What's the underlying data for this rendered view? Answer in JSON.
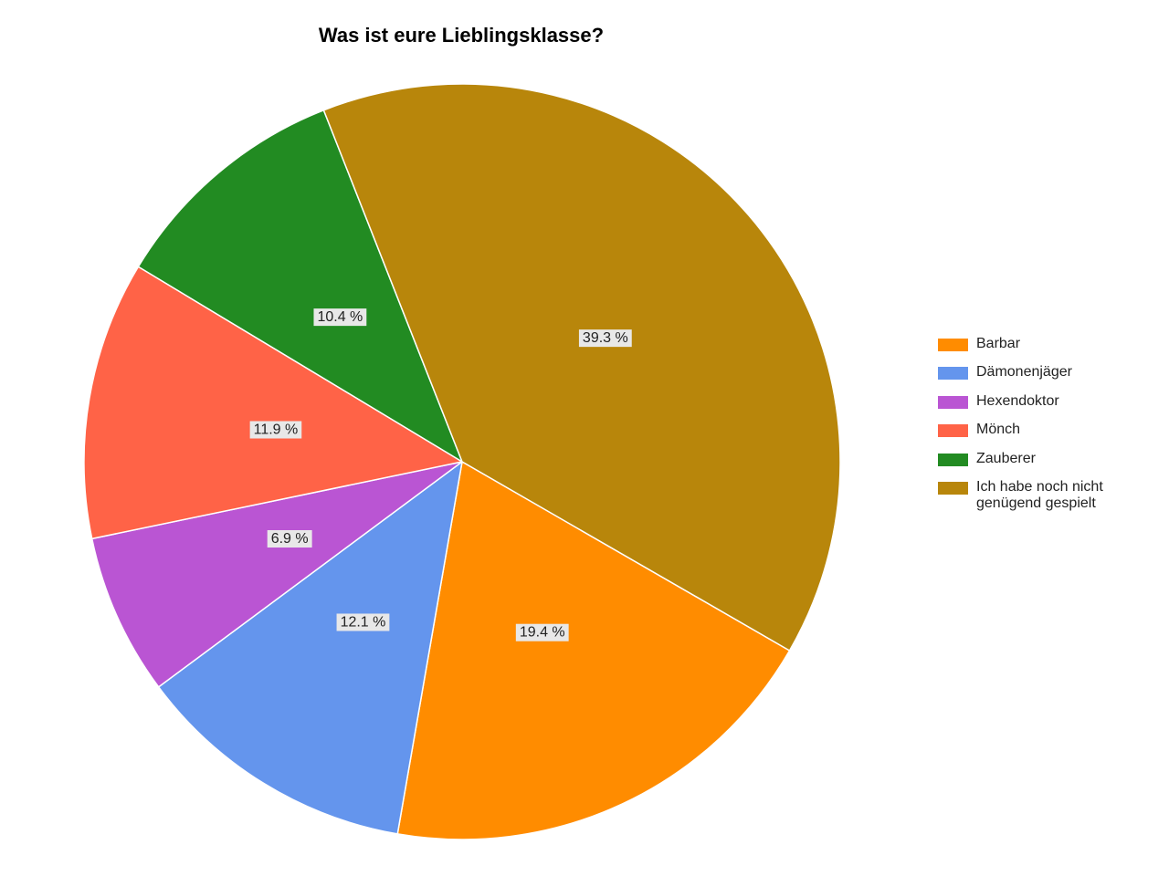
{
  "chart_data": {
    "type": "pie",
    "title": "Was ist eure Lieblingsklasse?",
    "categories": [
      "Barbar",
      "Dämonenjäger",
      "Hexendoktor",
      "Mönch",
      "Zauberer",
      "Ich habe noch nicht genügend gespielt"
    ],
    "values": [
      19.4,
      12.1,
      6.9,
      11.9,
      10.4,
      39.3
    ],
    "value_labels": [
      "19.4 %",
      "12.1 %",
      "6.9 %",
      "11.9 %",
      "10.4 %",
      "39.3 %"
    ],
    "colors": [
      "#ff8c00",
      "#6495ed",
      "#ba55d3",
      "#ff6347",
      "#228b22",
      "#b8860b"
    ],
    "legend": "right"
  }
}
